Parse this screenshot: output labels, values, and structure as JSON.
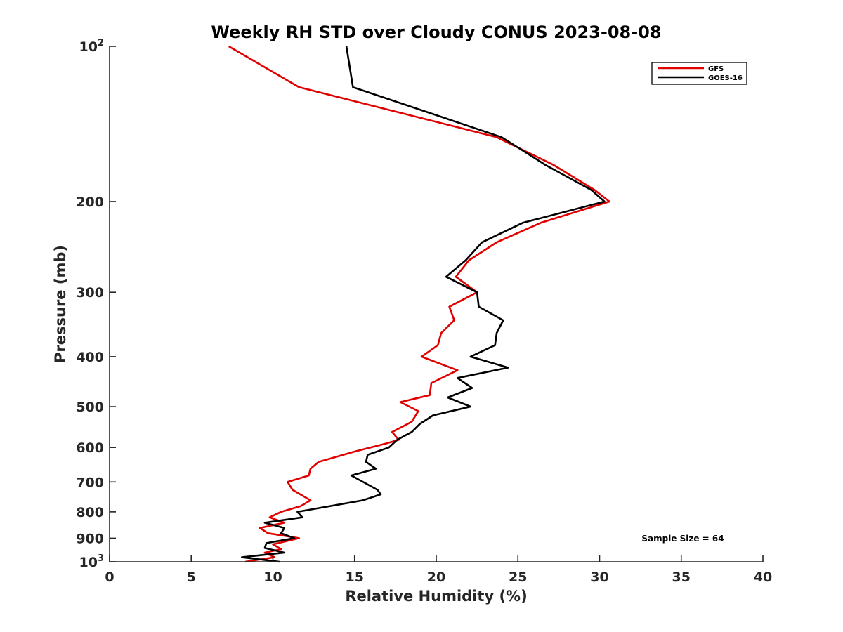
{
  "chart_data": {
    "type": "line",
    "title": "Weekly RH STD over Cloudy CONUS 2023-08-08",
    "xlabel": "Relative Humidity (%)",
    "ylabel": "Pressure (mb)",
    "xlim": [
      0,
      40
    ],
    "ylim": [
      100,
      1000
    ],
    "y_scale": "log",
    "y_reversed": true,
    "grid": false,
    "legend_position": "top-right",
    "x_ticks": [
      0,
      5,
      10,
      15,
      20,
      25,
      30,
      35,
      40
    ],
    "x_tick_labels": [
      "0",
      "5",
      "10",
      "15",
      "20",
      "25",
      "30",
      "35",
      "40"
    ],
    "y_ticks": [
      100,
      200,
      300,
      400,
      500,
      600,
      700,
      800,
      900,
      1000
    ],
    "y_tick_labels": [
      {
        "base": "10",
        "exp": "2"
      },
      {
        "base": "200"
      },
      {
        "base": "300"
      },
      {
        "base": "400"
      },
      {
        "base": "500"
      },
      {
        "base": "600"
      },
      {
        "base": "700"
      },
      {
        "base": "800"
      },
      {
        "base": "900"
      },
      {
        "base": "10",
        "exp": "3"
      }
    ],
    "annotation": "Sample Size = 64",
    "series": [
      {
        "name": "GFS",
        "color": "#e00000",
        "points": [
          [
            7.3,
            100
          ],
          [
            11.6,
            120
          ],
          [
            23.7,
            150
          ],
          [
            27.2,
            170
          ],
          [
            29.7,
            190
          ],
          [
            30.6,
            200
          ],
          [
            26.4,
            220
          ],
          [
            23.7,
            240
          ],
          [
            22.0,
            260
          ],
          [
            21.2,
            280
          ],
          [
            22.5,
            300
          ],
          [
            20.8,
            320
          ],
          [
            21.1,
            340
          ],
          [
            20.3,
            360
          ],
          [
            20.1,
            380
          ],
          [
            19.1,
            400
          ],
          [
            21.3,
            425
          ],
          [
            19.7,
            450
          ],
          [
            19.6,
            475
          ],
          [
            17.8,
            490
          ],
          [
            18.9,
            510
          ],
          [
            18.5,
            535
          ],
          [
            17.3,
            560
          ],
          [
            17.7,
            580
          ],
          [
            16.9,
            590
          ],
          [
            15.1,
            610
          ],
          [
            12.8,
            640
          ],
          [
            12.3,
            660
          ],
          [
            12.2,
            680
          ],
          [
            10.9,
            700
          ],
          [
            11.2,
            725
          ],
          [
            12.3,
            760
          ],
          [
            11.7,
            780
          ],
          [
            10.5,
            800
          ],
          [
            9.8,
            820
          ],
          [
            10.7,
            840
          ],
          [
            9.2,
            860
          ],
          [
            9.7,
            880
          ],
          [
            11.6,
            900
          ],
          [
            10.0,
            925
          ],
          [
            10.5,
            945
          ],
          [
            9.5,
            960
          ],
          [
            10.1,
            980
          ],
          [
            8.3,
            1000
          ]
        ]
      },
      {
        "name": "GOES-16",
        "color": "#000000",
        "points": [
          [
            14.5,
            100
          ],
          [
            14.9,
            120
          ],
          [
            24.0,
            150
          ],
          [
            26.7,
            170
          ],
          [
            29.5,
            190
          ],
          [
            30.3,
            200
          ],
          [
            25.3,
            220
          ],
          [
            22.8,
            240
          ],
          [
            21.8,
            260
          ],
          [
            20.6,
            280
          ],
          [
            22.5,
            300
          ],
          [
            22.6,
            320
          ],
          [
            24.1,
            340
          ],
          [
            23.7,
            360
          ],
          [
            23.6,
            380
          ],
          [
            22.1,
            400
          ],
          [
            24.4,
            420
          ],
          [
            21.3,
            440
          ],
          [
            22.2,
            460
          ],
          [
            20.7,
            480
          ],
          [
            22.1,
            500
          ],
          [
            19.8,
            520
          ],
          [
            19.0,
            540
          ],
          [
            18.5,
            560
          ],
          [
            17.6,
            580
          ],
          [
            17.1,
            600
          ],
          [
            15.8,
            620
          ],
          [
            15.7,
            640
          ],
          [
            16.3,
            660
          ],
          [
            14.8,
            680
          ],
          [
            16.4,
            725
          ],
          [
            16.6,
            740
          ],
          [
            15.5,
            760
          ],
          [
            11.5,
            800
          ],
          [
            11.8,
            820
          ],
          [
            9.5,
            840
          ],
          [
            10.7,
            860
          ],
          [
            10.5,
            880
          ],
          [
            11.3,
            900
          ],
          [
            9.6,
            920
          ],
          [
            9.5,
            940
          ],
          [
            10.7,
            960
          ],
          [
            8.1,
            980
          ],
          [
            10.4,
            1000
          ]
        ]
      }
    ]
  }
}
